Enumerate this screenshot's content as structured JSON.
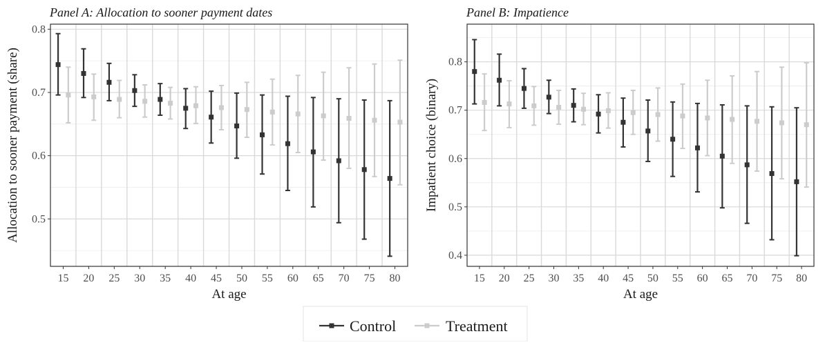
{
  "colors": {
    "control": "#333333",
    "treatment": "#cccccc",
    "grid": "#d9d9d9",
    "frame": "#333333"
  },
  "legend": {
    "items": [
      "Control",
      "Treatment"
    ],
    "position": "bottom"
  },
  "chart_data": [
    {
      "type": "errorbar",
      "title": "Panel A: Allocation to sooner payment dates",
      "xlabel": "At age",
      "ylabel": "Allocation to sooner payment (share)",
      "categories": [
        "15",
        "20",
        "25",
        "30",
        "35",
        "40",
        "45",
        "50",
        "55",
        "60",
        "65",
        "70",
        "75",
        "80"
      ],
      "ylim": [
        0.425,
        0.808
      ],
      "yticks": [
        "0.5",
        "0.6",
        "0.7",
        "0.8"
      ],
      "grid": true,
      "series": [
        {
          "name": "Control",
          "values": [
            0.744,
            0.73,
            0.716,
            0.703,
            0.689,
            0.675,
            0.661,
            0.647,
            0.633,
            0.619,
            0.606,
            0.592,
            0.578,
            0.564
          ],
          "lower": [
            0.696,
            0.692,
            0.687,
            0.678,
            0.664,
            0.643,
            0.62,
            0.596,
            0.571,
            0.545,
            0.519,
            0.494,
            0.468,
            0.441
          ],
          "upper": [
            0.793,
            0.769,
            0.746,
            0.728,
            0.714,
            0.706,
            0.702,
            0.699,
            0.696,
            0.694,
            0.692,
            0.69,
            0.688,
            0.687
          ]
        },
        {
          "name": "Treatment",
          "values": [
            0.696,
            0.693,
            0.689,
            0.686,
            0.683,
            0.679,
            0.676,
            0.673,
            0.669,
            0.666,
            0.663,
            0.659,
            0.656,
            0.653
          ],
          "lower": [
            0.652,
            0.656,
            0.66,
            0.661,
            0.658,
            0.651,
            0.641,
            0.629,
            0.617,
            0.605,
            0.593,
            0.58,
            0.567,
            0.554
          ],
          "upper": [
            0.74,
            0.729,
            0.719,
            0.712,
            0.708,
            0.709,
            0.711,
            0.716,
            0.721,
            0.727,
            0.732,
            0.739,
            0.745,
            0.751
          ]
        }
      ]
    },
    {
      "type": "errorbar",
      "title": "Panel B: Impatience",
      "xlabel": "At age",
      "ylabel": "Impatient choice (binary)",
      "categories": [
        "15",
        "20",
        "25",
        "30",
        "35",
        "40",
        "45",
        "50",
        "55",
        "60",
        "65",
        "70",
        "75",
        "80"
      ],
      "ylim": [
        0.377,
        0.878
      ],
      "yticks": [
        "0.4",
        "0.5",
        "0.6",
        "0.7",
        "0.8"
      ],
      "grid": true,
      "series": [
        {
          "name": "Control",
          "values": [
            0.78,
            0.762,
            0.745,
            0.727,
            0.71,
            0.692,
            0.675,
            0.657,
            0.64,
            0.622,
            0.605,
            0.587,
            0.569,
            0.552
          ],
          "lower": [
            0.713,
            0.709,
            0.704,
            0.693,
            0.676,
            0.653,
            0.624,
            0.594,
            0.563,
            0.531,
            0.498,
            0.466,
            0.432,
            0.399
          ],
          "upper": [
            0.846,
            0.816,
            0.786,
            0.762,
            0.744,
            0.732,
            0.725,
            0.721,
            0.717,
            0.714,
            0.711,
            0.709,
            0.707,
            0.705
          ]
        },
        {
          "name": "Treatment",
          "values": [
            0.716,
            0.713,
            0.709,
            0.706,
            0.702,
            0.699,
            0.695,
            0.691,
            0.688,
            0.684,
            0.681,
            0.677,
            0.674,
            0.67
          ],
          "lower": [
            0.658,
            0.664,
            0.669,
            0.671,
            0.67,
            0.663,
            0.65,
            0.636,
            0.621,
            0.606,
            0.59,
            0.574,
            0.558,
            0.541
          ],
          "upper": [
            0.775,
            0.761,
            0.749,
            0.741,
            0.735,
            0.736,
            0.741,
            0.746,
            0.754,
            0.762,
            0.771,
            0.78,
            0.789,
            0.798
          ]
        }
      ]
    }
  ]
}
